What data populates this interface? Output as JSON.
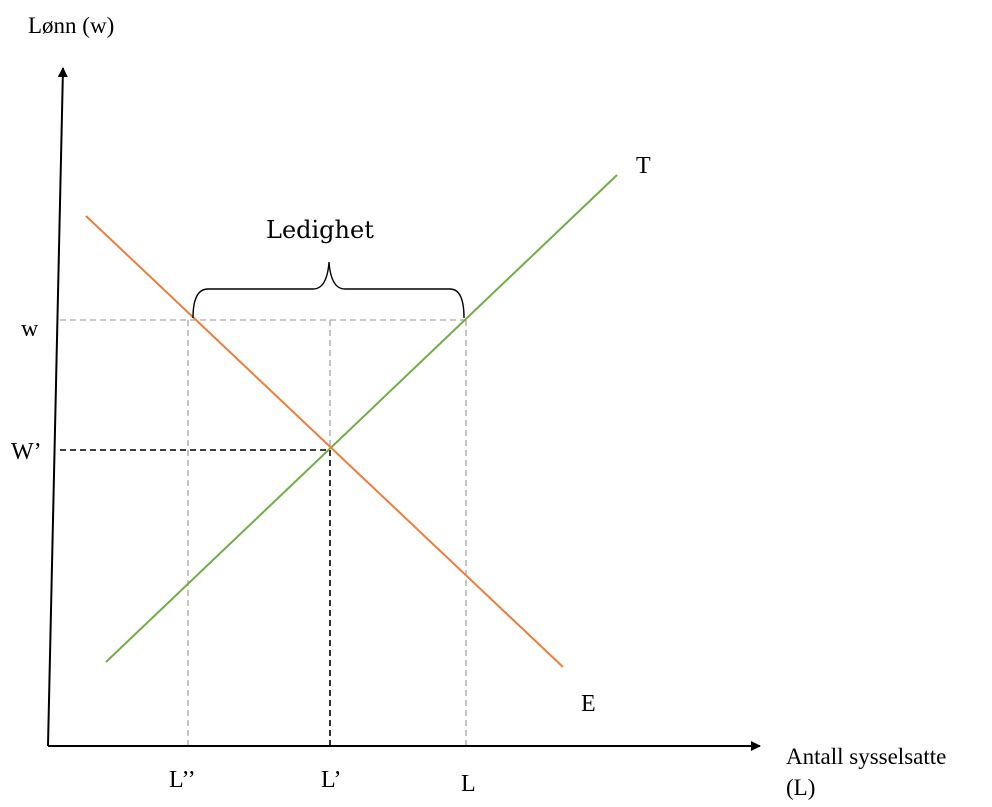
{
  "colors": {
    "demand": "#ee7d3b",
    "supply": "#70ad47",
    "guide": "#a6a6a6",
    "equilibrium_guide": "#000000",
    "axis": "#000000"
  },
  "axes": {
    "y_label": "Lønn (w)",
    "x_label_line1": "Antall sysselsatte",
    "x_label_line2": "(L)"
  },
  "curves": {
    "supply_label": "T",
    "demand_label": "E"
  },
  "y_ticks": {
    "w": "w",
    "w_prime": "W’"
  },
  "x_ticks": {
    "l_double_prime": "L’’",
    "l_prime": "L’",
    "l": "L"
  },
  "annotation": {
    "brace_label": "Ledighet"
  }
}
